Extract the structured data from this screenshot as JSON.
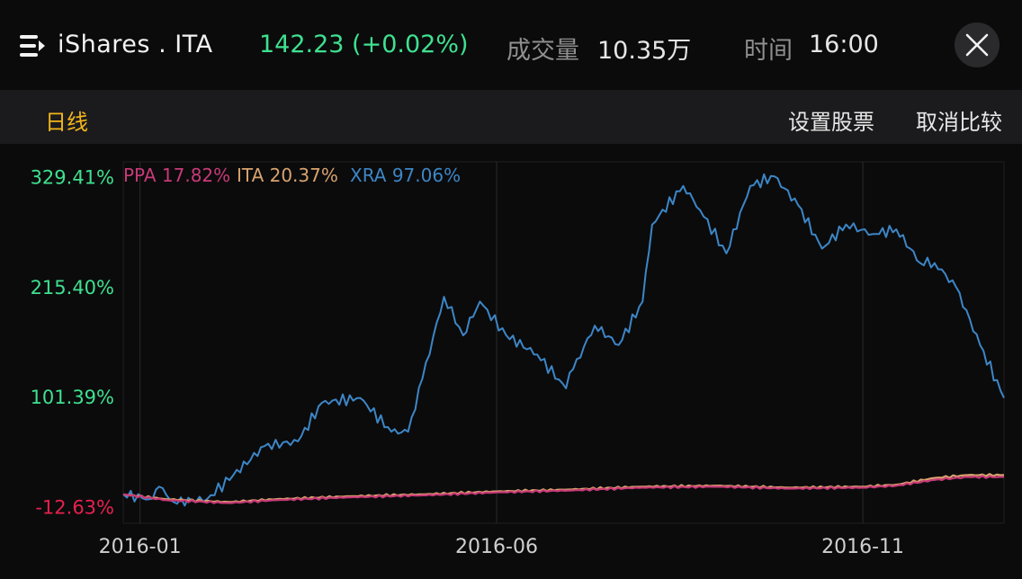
{
  "header": {
    "ticker": "iShares . ITA",
    "price_change": "142.23 (+0.02%)",
    "volume_label": "成交量",
    "volume_value": "10.35万",
    "time_label": "时间",
    "time_value": "16:00"
  },
  "toolbar": {
    "period_tab": "日线",
    "set_stock_label": "设置股票",
    "cancel_compare_label": "取消比较"
  },
  "colors": {
    "up": "#3fe08f",
    "down": "#e8204e",
    "period_active": "#f3b51c",
    "ppa": "#c83a78",
    "ita": "#d9a36e",
    "xra": "#3d86c6"
  },
  "chart_data": {
    "type": "line",
    "y_unit": "%",
    "x_range": [
      "2015-12-28",
      "2016-12-30"
    ],
    "ylim": [
      -30,
      345
    ],
    "yticks": [
      {
        "value": 329.41,
        "label": "329.41%"
      },
      {
        "value": 215.4,
        "label": "215.40%"
      },
      {
        "value": 101.39,
        "label": "101.39%"
      },
      {
        "value": -12.63,
        "label": "-12.63%"
      }
    ],
    "xticks": [
      {
        "value": "2016-01-04",
        "label": "2016-01"
      },
      {
        "value": "2016-06-01",
        "label": "2016-06"
      },
      {
        "value": "2016-11-01",
        "label": "2016-11"
      }
    ],
    "legend": [
      {
        "name": "PPA",
        "label": "PPA 17.82%",
        "color": "#c83a78"
      },
      {
        "name": "ITA",
        "label": "ITA 20.37%",
        "color": "#d9a36e"
      },
      {
        "name": "XRA",
        "label": "XRA 97.06%",
        "color": "#3d86c6"
      }
    ],
    "series": [
      {
        "name": "XRA",
        "color": "#3d86c6",
        "points": [
          [
            "2015-12-28",
            0
          ],
          [
            "2016-01-08",
            -5
          ],
          [
            "2016-01-12",
            8
          ],
          [
            "2016-01-18",
            -8
          ],
          [
            "2016-02-01",
            -5
          ],
          [
            "2016-02-12",
            20
          ],
          [
            "2016-02-25",
            50
          ],
          [
            "2016-03-10",
            55
          ],
          [
            "2016-03-20",
            95
          ],
          [
            "2016-04-05",
            100
          ],
          [
            "2016-04-18",
            65
          ],
          [
            "2016-04-25",
            65
          ],
          [
            "2016-05-01",
            120
          ],
          [
            "2016-05-10",
            205
          ],
          [
            "2016-05-18",
            165
          ],
          [
            "2016-05-25",
            200
          ],
          [
            "2016-06-05",
            165
          ],
          [
            "2016-06-18",
            145
          ],
          [
            "2016-06-30",
            110
          ],
          [
            "2016-07-03",
            130
          ],
          [
            "2016-07-12",
            175
          ],
          [
            "2016-07-22",
            155
          ],
          [
            "2016-08-01",
            200
          ],
          [
            "2016-08-05",
            280
          ],
          [
            "2016-08-18",
            320
          ],
          [
            "2016-08-25",
            295
          ],
          [
            "2016-09-05",
            250
          ],
          [
            "2016-09-15",
            320
          ],
          [
            "2016-09-25",
            330
          ],
          [
            "2016-10-05",
            300
          ],
          [
            "2016-10-15",
            255
          ],
          [
            "2016-10-25",
            280
          ],
          [
            "2016-11-05",
            270
          ],
          [
            "2016-11-15",
            275
          ],
          [
            "2016-11-25",
            240
          ],
          [
            "2016-12-01",
            240
          ],
          [
            "2016-12-10",
            215
          ],
          [
            "2016-12-20",
            155
          ],
          [
            "2016-12-30",
            100
          ]
        ]
      },
      {
        "name": "ITA",
        "color": "#d9a36e",
        "points": [
          [
            "2015-12-28",
            0
          ],
          [
            "2016-01-15",
            -5
          ],
          [
            "2016-02-10",
            -8
          ],
          [
            "2016-03-01",
            -5
          ],
          [
            "2016-04-01",
            -2
          ],
          [
            "2016-05-01",
            0
          ],
          [
            "2016-06-01",
            3
          ],
          [
            "2016-07-01",
            5
          ],
          [
            "2016-08-01",
            8
          ],
          [
            "2016-09-01",
            9
          ],
          [
            "2016-10-01",
            7
          ],
          [
            "2016-11-01",
            8
          ],
          [
            "2016-11-15",
            10
          ],
          [
            "2016-12-01",
            17
          ],
          [
            "2016-12-15",
            20
          ],
          [
            "2016-12-30",
            20
          ]
        ]
      },
      {
        "name": "PPA",
        "color": "#c83a78",
        "points": [
          [
            "2015-12-28",
            0
          ],
          [
            "2016-01-15",
            -6
          ],
          [
            "2016-02-10",
            -9
          ],
          [
            "2016-03-01",
            -6
          ],
          [
            "2016-04-01",
            -3
          ],
          [
            "2016-05-01",
            -1
          ],
          [
            "2016-06-01",
            2
          ],
          [
            "2016-07-01",
            4
          ],
          [
            "2016-08-01",
            7
          ],
          [
            "2016-09-01",
            8
          ],
          [
            "2016-10-01",
            6
          ],
          [
            "2016-11-01",
            7
          ],
          [
            "2016-11-15",
            9
          ],
          [
            "2016-12-01",
            15
          ],
          [
            "2016-12-15",
            18
          ],
          [
            "2016-12-30",
            18
          ]
        ]
      }
    ]
  }
}
